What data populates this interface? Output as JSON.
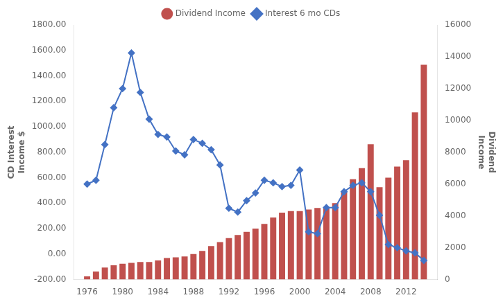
{
  "chart_data": {
    "type": "bar",
    "x": [
      1976,
      1977,
      1978,
      1979,
      1980,
      1981,
      1982,
      1983,
      1984,
      1985,
      1986,
      1987,
      1988,
      1989,
      1990,
      1991,
      1992,
      1993,
      1994,
      1995,
      1996,
      1997,
      1998,
      1999,
      2000,
      2001,
      2002,
      2003,
      2004,
      2005,
      2006,
      2007,
      2008,
      2009,
      2010,
      2011,
      2012,
      2013,
      2014
    ],
    "series": [
      {
        "name": "Dividend Income",
        "type": "bar",
        "color": "#C0504D",
        "axis": "y2",
        "values": [
          200,
          500,
          750,
          900,
          1000,
          1050,
          1100,
          1100,
          1200,
          1350,
          1400,
          1450,
          1600,
          1800,
          2100,
          2350,
          2600,
          2800,
          3000,
          3200,
          3500,
          3900,
          4200,
          4300,
          4300,
          4400,
          4500,
          4500,
          4800,
          5500,
          6300,
          7000,
          8500,
          5800,
          6400,
          7100,
          7500,
          10500,
          13500
        ]
      },
      {
        "name": "Interest 6 mo CDs",
        "type": "line",
        "color": "#4472C4",
        "marker": "diamond",
        "axis": "y",
        "values": [
          550,
          580,
          860,
          1150,
          1300,
          1580,
          1270,
          1060,
          940,
          920,
          810,
          780,
          900,
          870,
          820,
          700,
          360,
          330,
          420,
          480,
          580,
          560,
          530,
          540,
          660,
          175,
          160,
          365,
          365,
          490,
          540,
          560,
          490,
          305,
          75,
          50,
          25,
          10,
          -50
        ]
      }
    ],
    "ylabel": "CD Interest\nIncome $",
    "y2label": "Dividend\nIncome",
    "xlim": [
      1974.5,
      2015.5
    ],
    "xticks": [
      1976,
      1980,
      1984,
      1988,
      1992,
      1996,
      2000,
      2004,
      2008,
      2012
    ],
    "ylim": [
      -200,
      1800
    ],
    "yticks": [
      {
        "value": -200,
        "label": "-200.00"
      },
      {
        "value": 0,
        "label": "0.00"
      },
      {
        "value": 200,
        "label": "200.00"
      },
      {
        "value": 400,
        "label": "400.00"
      },
      {
        "value": 600,
        "label": "600.00"
      },
      {
        "value": 800,
        "label": "800.00"
      },
      {
        "value": 1000,
        "label": "1000.00"
      },
      {
        "value": 1200,
        "label": "1200.00"
      },
      {
        "value": 1400,
        "label": "1400.00"
      },
      {
        "value": 1600,
        "label": "1600.00"
      },
      {
        "value": 1800,
        "label": "1800.00"
      }
    ],
    "y2lim": [
      0,
      16000
    ],
    "y2ticks": [
      0,
      2000,
      4000,
      6000,
      8000,
      10000,
      12000,
      14000,
      16000
    ],
    "grid": false,
    "legend": "top"
  }
}
